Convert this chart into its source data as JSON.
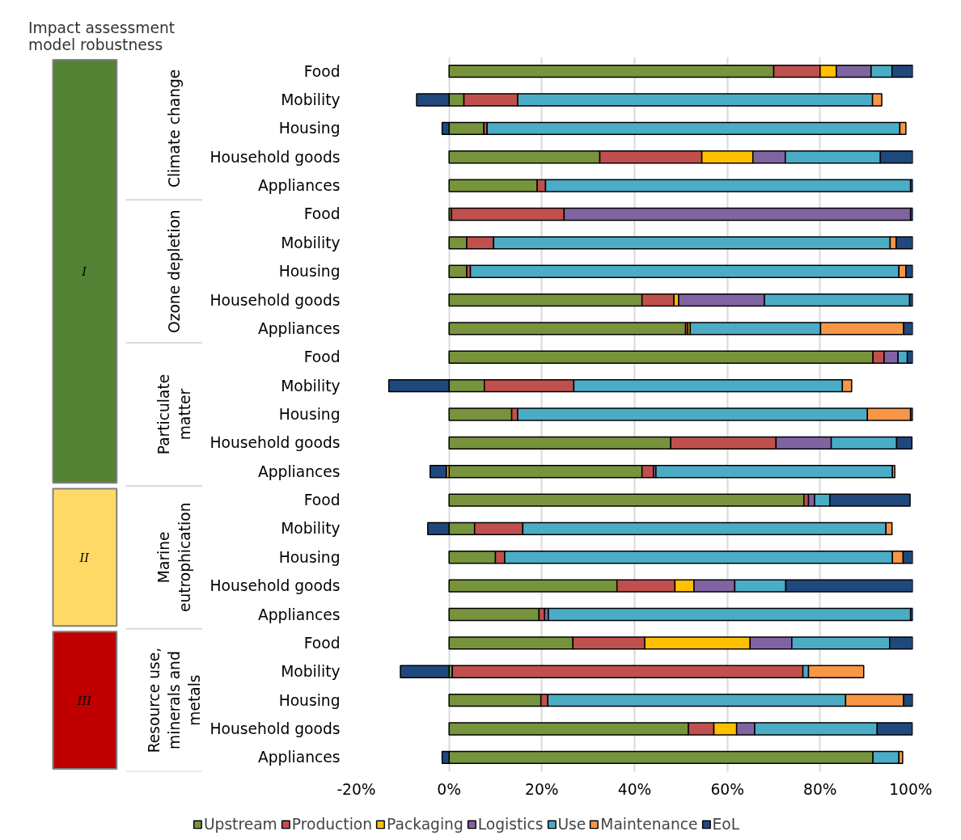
{
  "chart_data": {
    "type": "bar",
    "orientation": "horizontal",
    "stacked": true,
    "title": "Impact assessment model robustness",
    "categories": [
      "Food",
      "Mobility",
      "Housing",
      "Household goods",
      "Appliances",
      "Food",
      "Mobility",
      "Housing",
      "Household goods",
      "Appliances",
      "Food",
      "Mobility",
      "Housing",
      "Household goods",
      "Appliances",
      "Food",
      "Mobility",
      "Housing",
      "Household goods",
      "Appliances",
      "Food",
      "Mobility",
      "Housing",
      "Household goods",
      "Appliances"
    ],
    "series": [
      {
        "name": "Upstream",
        "color": "#77933c",
        "values": [
          70,
          3.2,
          7.5,
          32.5,
          19,
          0.5,
          3.8,
          3.8,
          41.6,
          51,
          91.4,
          7.6,
          13.5,
          47.8,
          41.6,
          76.5,
          5.5,
          10,
          36.2,
          19.4,
          26.7,
          0.7,
          19.8,
          51.6,
          91.4
        ]
      },
      {
        "name": "Production",
        "color": "#c0504d",
        "values": [
          10,
          11.6,
          0.7,
          22,
          1.8,
          24.3,
          5.8,
          0.8,
          6.9,
          0.5,
          2.4,
          19.3,
          1.3,
          22.7,
          2.5,
          1,
          10.4,
          2,
          12.5,
          1.2,
          15.5,
          75.6,
          1.5,
          5.5,
          0
        ]
      },
      {
        "name": "Packaging",
        "color": "#ffc000",
        "values": [
          3.5,
          0,
          0,
          11,
          0,
          0,
          0,
          0,
          1,
          0.5,
          0,
          0,
          0,
          0,
          -0.6,
          0,
          0,
          0,
          4.1,
          0,
          22.7,
          0,
          0,
          4.9,
          0
        ]
      },
      {
        "name": "Logistics",
        "color": "#8064a2",
        "values": [
          7.5,
          0,
          0,
          7,
          0,
          74.7,
          0,
          0,
          18.5,
          0,
          3,
          0,
          0,
          11.9,
          0.5,
          1.3,
          0,
          0,
          8.8,
          0.8,
          9,
          0,
          0,
          3.9,
          0
        ]
      },
      {
        "name": "Use",
        "color": "#4bacc6",
        "values": [
          4.5,
          76.5,
          89,
          20.5,
          78.7,
          0,
          85.5,
          92.4,
          31.3,
          28.1,
          2,
          57.9,
          75.4,
          14.1,
          51,
          3.3,
          78.3,
          83.6,
          11,
          78.1,
          21.1,
          1.2,
          64.2,
          26.4,
          5.6
        ]
      },
      {
        "name": "Maintenance",
        "color": "#f79646",
        "values": [
          0,
          2,
          1.3,
          0,
          0,
          0,
          1.3,
          1.5,
          0,
          17.9,
          0,
          2,
          9.3,
          0,
          0.5,
          0,
          1.3,
          2.3,
          0,
          0,
          0,
          11.9,
          12.5,
          0,
          0.8
        ]
      },
      {
        "name": "EoL",
        "color": "#1f497d",
        "values": [
          4.5,
          -7,
          -1.5,
          7,
          0.5,
          0.5,
          3.6,
          1.5,
          0.7,
          2,
          1.2,
          -13,
          0.5,
          3.3,
          -3.5,
          17.3,
          -4.6,
          2.1,
          27.4,
          0.5,
          5,
          -10.5,
          2,
          7.6,
          -1.5
        ]
      }
    ],
    "xlim": [
      -20,
      100
    ],
    "xticks": [
      {
        "value": -20,
        "label": "-20%"
      },
      {
        "value": 0,
        "label": "0%"
      },
      {
        "value": 20,
        "label": "20%"
      },
      {
        "value": 40,
        "label": "40%"
      },
      {
        "value": 60,
        "label": "60%"
      },
      {
        "value": 80,
        "label": "80%"
      },
      {
        "value": 100,
        "label": "100%"
      }
    ],
    "grid": "x",
    "legend": "bottom",
    "annotations": [
      "Climate change",
      "Ozone depletion",
      "Particulate matter",
      "Marine eutrophication",
      "Resource use, minerals and metals",
      "I",
      "II",
      "III"
    ]
  }
}
